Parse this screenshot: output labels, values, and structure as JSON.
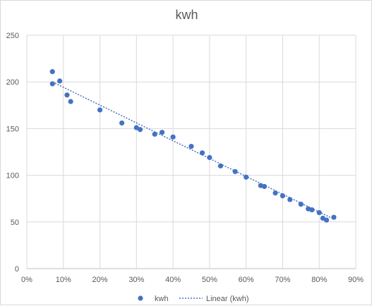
{
  "chart_data": {
    "type": "scatter",
    "title": "kwh",
    "xlabel": "",
    "ylabel": "",
    "xlim": [
      0,
      0.9
    ],
    "ylim": [
      0,
      250
    ],
    "x_ticks": [
      "0%",
      "10%",
      "20%",
      "30%",
      "40%",
      "50%",
      "60%",
      "70%",
      "80%",
      "90%"
    ],
    "y_ticks": [
      "0",
      "50",
      "100",
      "150",
      "200",
      "250"
    ],
    "grid": true,
    "legend_position": "bottom",
    "series": [
      {
        "name": "kwh",
        "type": "scatter",
        "color": "#4472c4",
        "points": [
          [
            0.07,
            211
          ],
          [
            0.07,
            198
          ],
          [
            0.09,
            201
          ],
          [
            0.11,
            186
          ],
          [
            0.12,
            179
          ],
          [
            0.2,
            170
          ],
          [
            0.26,
            156
          ],
          [
            0.3,
            151
          ],
          [
            0.31,
            149
          ],
          [
            0.35,
            144
          ],
          [
            0.37,
            146
          ],
          [
            0.4,
            141
          ],
          [
            0.45,
            131
          ],
          [
            0.48,
            124
          ],
          [
            0.5,
            119
          ],
          [
            0.53,
            110
          ],
          [
            0.57,
            104
          ],
          [
            0.6,
            98
          ],
          [
            0.64,
            89
          ],
          [
            0.65,
            88
          ],
          [
            0.68,
            81
          ],
          [
            0.7,
            78
          ],
          [
            0.72,
            74
          ],
          [
            0.75,
            69
          ],
          [
            0.77,
            64
          ],
          [
            0.78,
            63
          ],
          [
            0.8,
            60
          ],
          [
            0.81,
            54
          ],
          [
            0.82,
            52
          ],
          [
            0.84,
            55
          ]
        ]
      },
      {
        "name": "Linear (kwh)",
        "type": "trendline",
        "color": "#4472c4",
        "points": [
          [
            0.07,
            200
          ],
          [
            0.84,
            53
          ]
        ]
      }
    ]
  }
}
